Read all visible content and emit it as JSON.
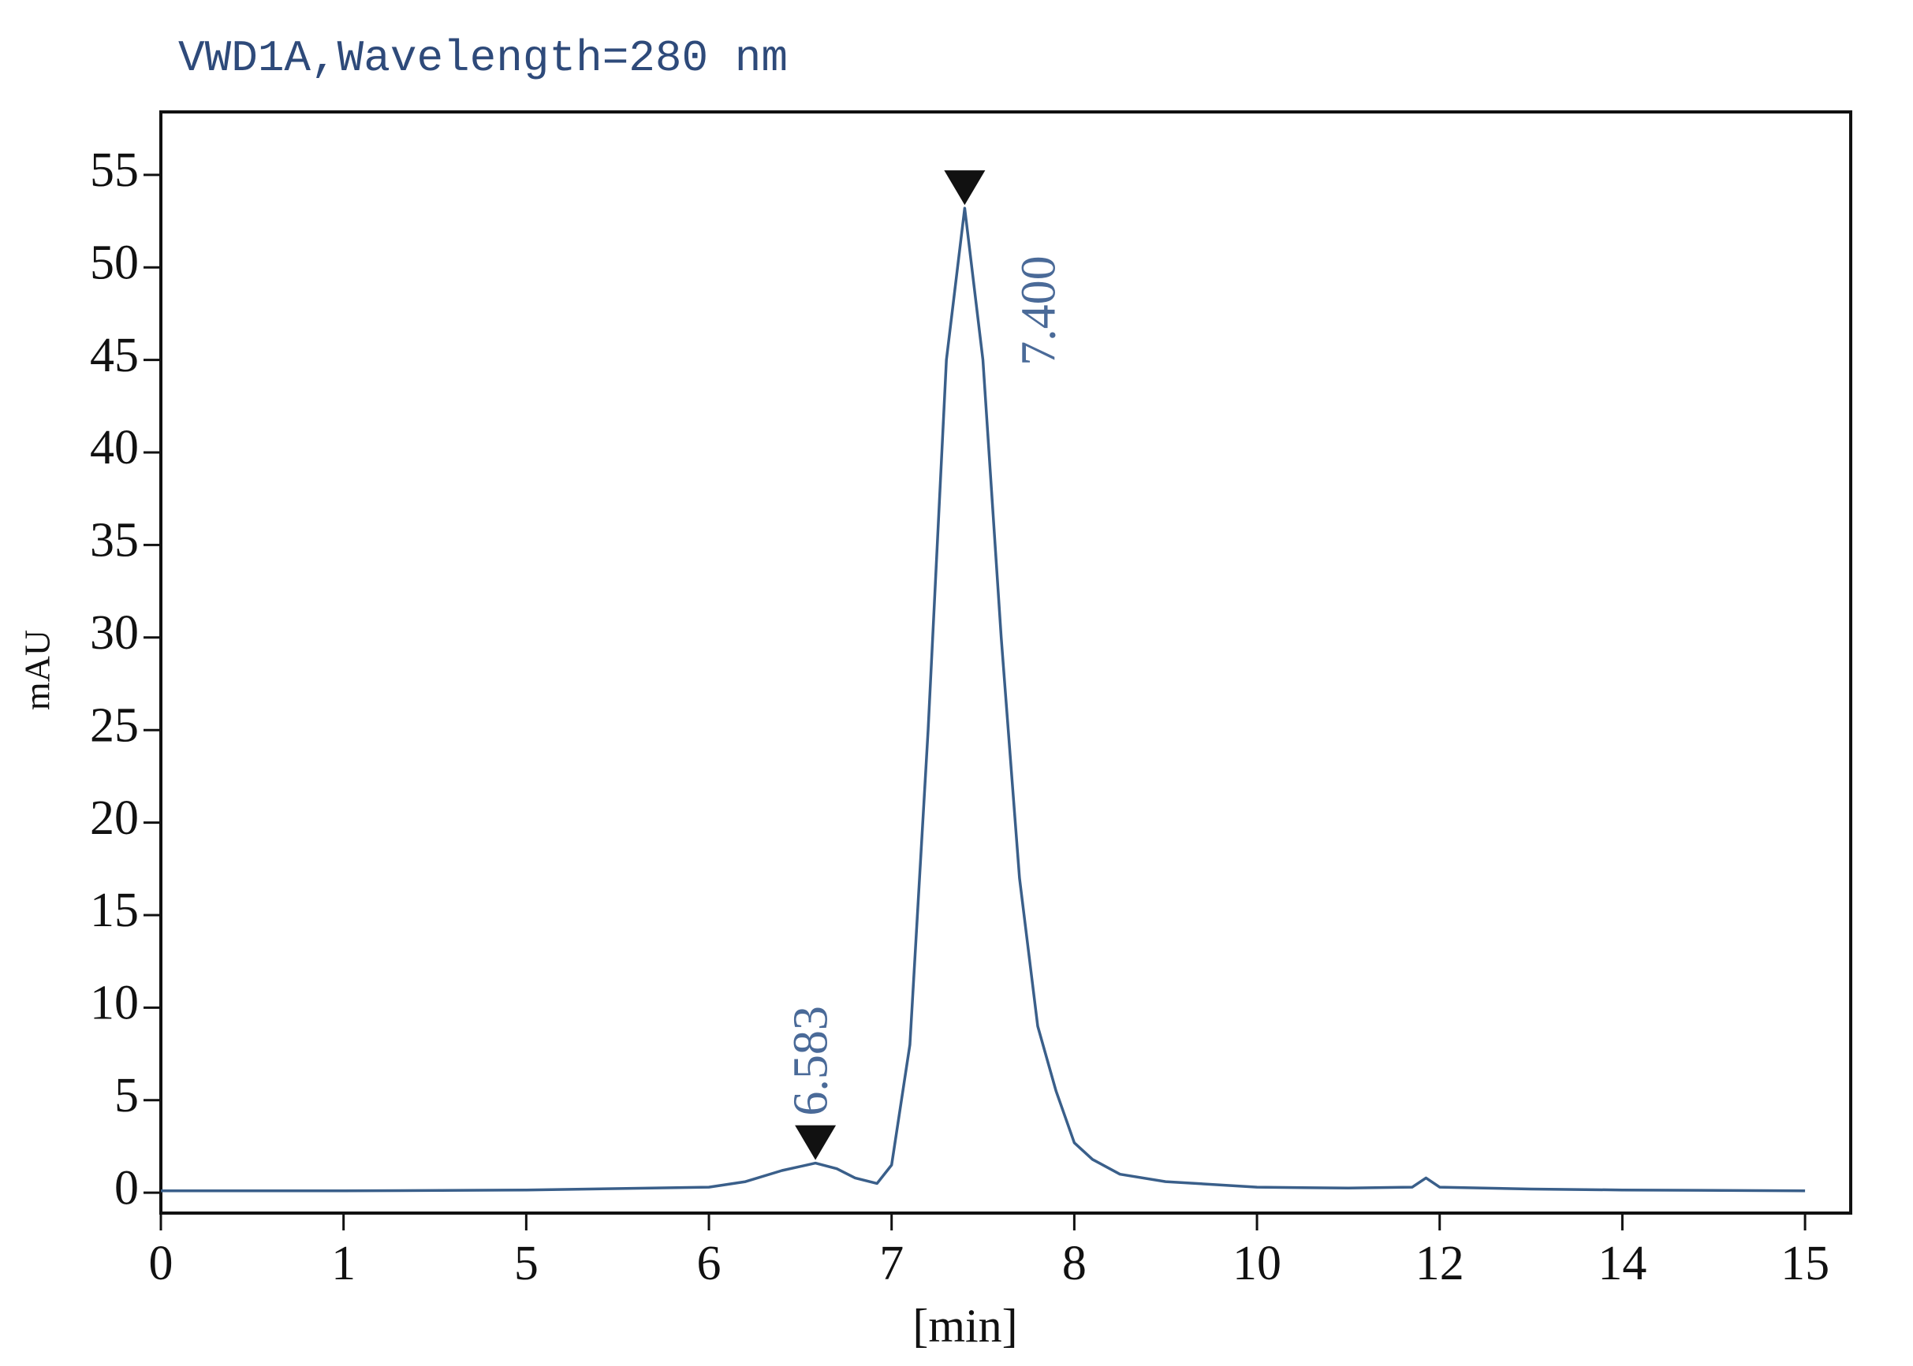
{
  "chart_data": {
    "type": "line",
    "title": "VWD1A,Wavelength=280 nm",
    "x_label": "[min]",
    "y_label": "mAU",
    "x_scale": "tick-spaced",
    "xlim": [
      0,
      15.25
    ],
    "xticks": [
      0,
      1,
      5,
      6,
      7,
      8,
      10,
      12,
      14,
      15
    ],
    "ylim": [
      -1.1,
      58.4
    ],
    "yticks": [
      0,
      5,
      10,
      15,
      20,
      25,
      30,
      35,
      40,
      45,
      50,
      55
    ],
    "series": [
      {
        "color": "#3a5f8a",
        "x": [
          0,
          1,
          5,
          6,
          6.2,
          6.4,
          6.583,
          6.7,
          6.8,
          6.92,
          7.0,
          7.1,
          7.2,
          7.3,
          7.4,
          7.5,
          7.6,
          7.7,
          7.8,
          7.9,
          8.0,
          8.2,
          8.5,
          9,
          10,
          11,
          11.7,
          11.85,
          12,
          13,
          14,
          15
        ],
        "values": [
          0.1,
          0.1,
          0.15,
          0.3,
          0.6,
          1.2,
          1.6,
          1.3,
          0.8,
          0.5,
          1.5,
          8,
          25,
          45,
          53.2,
          45,
          30,
          17,
          9,
          5.5,
          2.7,
          1.8,
          1.0,
          0.6,
          0.3,
          0.25,
          0.3,
          0.8,
          0.3,
          0.2,
          0.15,
          0.1
        ]
      }
    ],
    "peaks": [
      {
        "label": "6.583",
        "x": 6.583,
        "y": 1.6
      },
      {
        "label": "7.400",
        "x": 7.4,
        "y": 53.2
      }
    ]
  }
}
